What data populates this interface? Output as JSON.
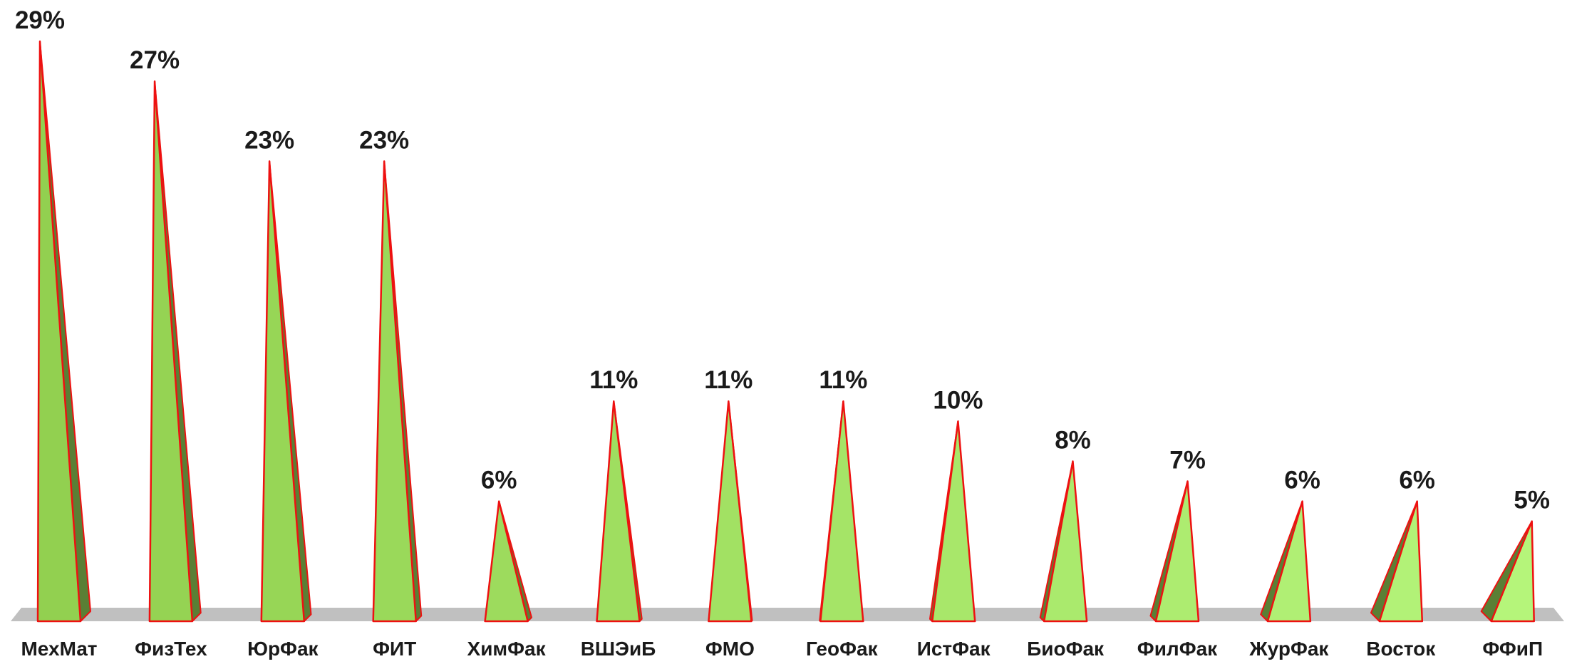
{
  "chart_data": {
    "type": "bar",
    "style": "3d-pyramid",
    "categories": [
      "МехМат",
      "ФизТех",
      "ЮрФак",
      "ФИТ",
      "ХимФак",
      "ВШЭиБ",
      "ФМО",
      "ГеоФак",
      "ИстФак",
      "БиоФак",
      "ФилФак",
      "ЖурФак",
      "Восток",
      "ФФиП"
    ],
    "values": [
      29,
      27,
      23,
      23,
      6,
      11,
      11,
      11,
      10,
      8,
      7,
      6,
      6,
      5
    ],
    "value_labels": [
      "29%",
      "27%",
      "23%",
      "23%",
      "6%",
      "11%",
      "11%",
      "11%",
      "10%",
      "8%",
      "7%",
      "6%",
      "6%",
      "5%"
    ],
    "unit": "%",
    "title": "",
    "xlabel": "",
    "ylabel": "",
    "ylim": [
      0,
      29
    ],
    "grid": false,
    "legend": "none",
    "colors": {
      "front_fill": "#92d050",
      "front_fill_light": "#b5f57a",
      "side_fill": "#5a7f35",
      "outline": "#ee1111",
      "floor": "#c0c0c0",
      "text": "#1a1a1a"
    }
  }
}
